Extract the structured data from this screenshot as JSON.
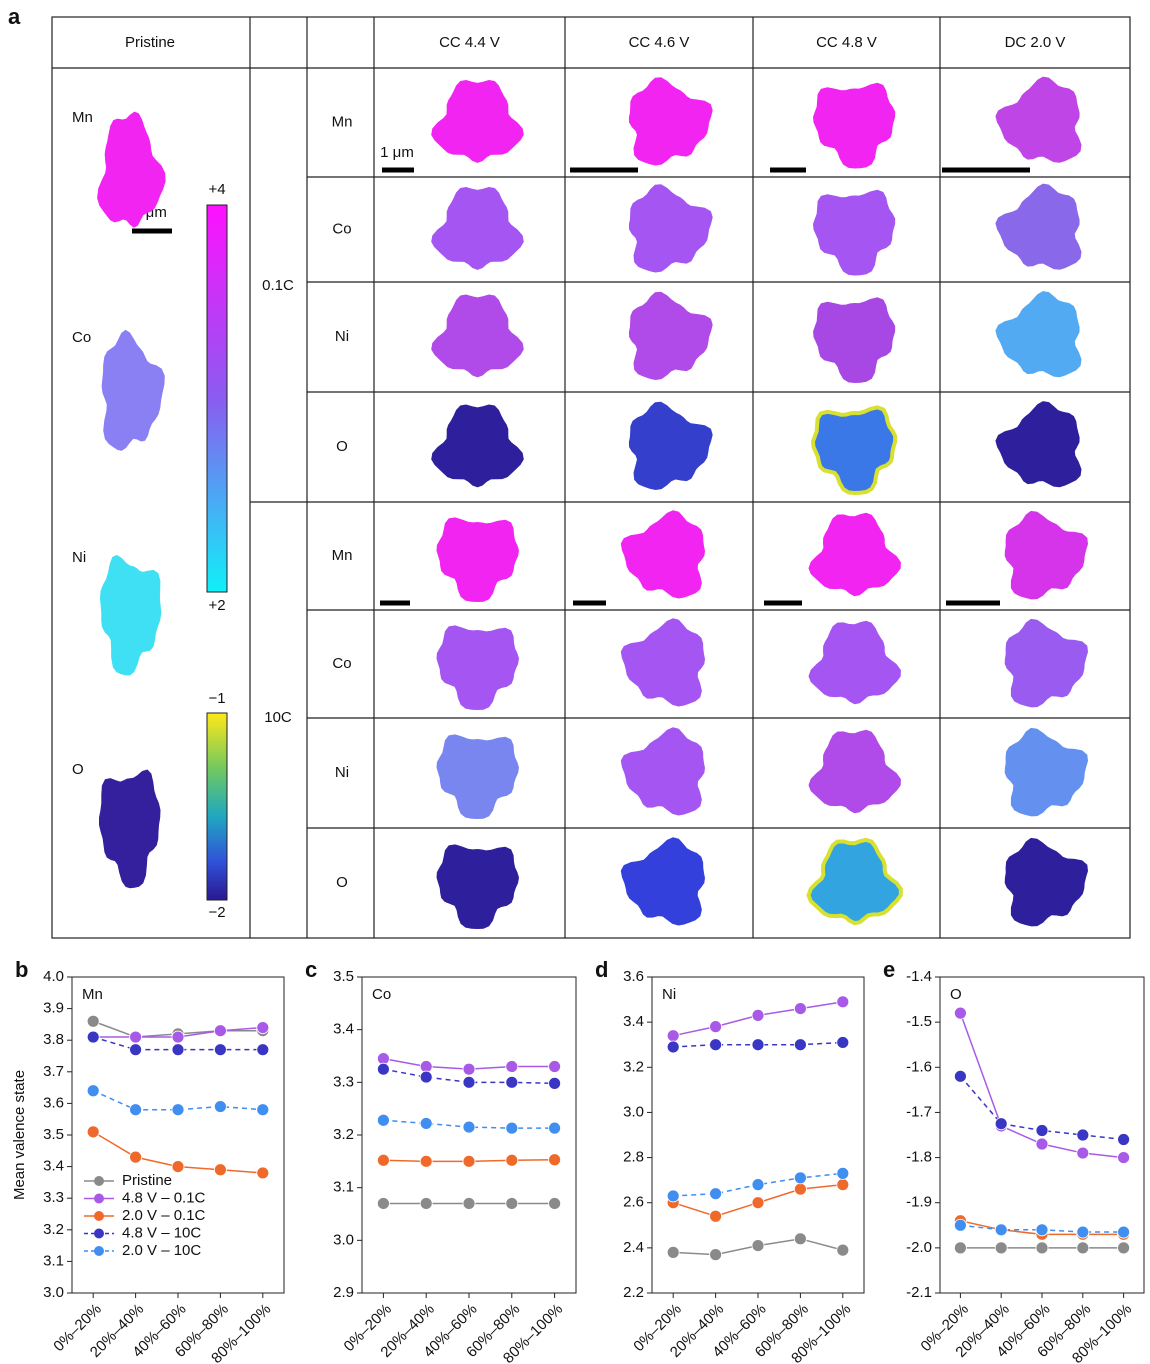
{
  "panel_a": {
    "label": "a",
    "pristine_header": "Pristine",
    "columns": [
      "CC 4.4 V",
      "CC 4.6 V",
      "CC 4.8 V",
      "DC 2.0 V"
    ],
    "rates": [
      "0.1C",
      "10C"
    ],
    "elements": [
      "Mn",
      "Co",
      "Ni",
      "O"
    ],
    "scale_bar": "1 μm",
    "colorbar_metal": {
      "max": "+4",
      "min": "+2"
    },
    "colorbar_oxygen": {
      "max": "−1",
      "min": "−2"
    }
  },
  "chart_data": [
    {
      "type": "line",
      "panel": "b",
      "title": "Mn",
      "ylabel": "Mean valence state",
      "legend": "lower left",
      "categories": [
        "0%–20%",
        "20%–40%",
        "40%–60%",
        "60%–80%",
        "80%–100%"
      ],
      "ylim": [
        3.0,
        4.0
      ],
      "yticks": [
        {
          "value": 3.0,
          "label": "3.0"
        },
        3.1,
        3.2,
        3.3,
        3.4,
        3.5,
        3.6,
        3.7,
        3.8,
        3.9,
        {
          "value": 4.0,
          "label": "4.0"
        }
      ],
      "series": [
        {
          "name": "Pristine",
          "color": "#8a8a8a",
          "dashed": false,
          "values": [
            3.86,
            3.81,
            3.82,
            3.83,
            3.83
          ]
        },
        {
          "name": "4.8 V – 0.1C",
          "color": "#a85ae6",
          "dashed": false,
          "values": [
            3.81,
            3.81,
            3.81,
            3.83,
            3.84
          ]
        },
        {
          "name": "2.0 V – 0.1C",
          "color": "#ef6a2a",
          "dashed": false,
          "values": [
            3.51,
            3.43,
            3.4,
            3.39,
            3.38
          ]
        },
        {
          "name": "4.8 V – 10C",
          "color": "#3a36c4",
          "dashed": true,
          "values": [
            3.81,
            3.77,
            3.77,
            3.77,
            3.77
          ]
        },
        {
          "name": "2.0 V – 10C",
          "color": "#3f8ef0",
          "dashed": true,
          "values": [
            3.64,
            3.58,
            3.58,
            3.59,
            3.58
          ]
        }
      ]
    },
    {
      "type": "line",
      "panel": "c",
      "title": "Co",
      "categories": [
        "0%–20%",
        "20%–40%",
        "40%–60%",
        "60%–80%",
        "80%–100%"
      ],
      "ylim": [
        2.9,
        3.5
      ],
      "yticks": [
        2.9,
        {
          "value": 3.0,
          "label": "3.0"
        },
        3.1,
        3.2,
        3.3,
        3.4,
        3.5
      ],
      "series": [
        {
          "name": "Pristine",
          "color": "#8a8a8a",
          "dashed": false,
          "values": [
            3.07,
            3.07,
            3.07,
            3.07,
            3.07
          ]
        },
        {
          "name": "4.8 V – 0.1C",
          "color": "#a85ae6",
          "dashed": false,
          "values": [
            3.345,
            3.33,
            3.325,
            3.33,
            3.33
          ]
        },
        {
          "name": "2.0 V – 0.1C",
          "color": "#ef6a2a",
          "dashed": false,
          "values": [
            3.152,
            3.15,
            3.15,
            3.152,
            3.153
          ]
        },
        {
          "name": "4.8 V – 10C",
          "color": "#3a36c4",
          "dashed": true,
          "values": [
            3.325,
            3.31,
            3.3,
            3.3,
            3.298
          ]
        },
        {
          "name": "2.0 V – 10C",
          "color": "#3f8ef0",
          "dashed": true,
          "values": [
            3.228,
            3.222,
            3.215,
            3.213,
            3.213
          ]
        }
      ]
    },
    {
      "type": "line",
      "panel": "d",
      "title": "Ni",
      "categories": [
        "0%–20%",
        "20%–40%",
        "40%–60%",
        "60%–80%",
        "80%–100%"
      ],
      "ylim": [
        2.2,
        3.6
      ],
      "yticks": [
        2.2,
        2.4,
        2.6,
        2.8,
        {
          "value": 3.0,
          "label": "3.0"
        },
        3.2,
        3.4,
        3.6
      ],
      "series": [
        {
          "name": "Pristine",
          "color": "#8a8a8a",
          "dashed": false,
          "values": [
            2.38,
            2.37,
            2.41,
            2.44,
            2.39
          ]
        },
        {
          "name": "4.8 V – 0.1C",
          "color": "#a85ae6",
          "dashed": false,
          "values": [
            3.34,
            3.38,
            3.43,
            3.46,
            3.49
          ]
        },
        {
          "name": "2.0 V – 0.1C",
          "color": "#ef6a2a",
          "dashed": false,
          "values": [
            2.6,
            2.54,
            2.6,
            2.66,
            2.68
          ]
        },
        {
          "name": "4.8 V – 10C",
          "color": "#3a36c4",
          "dashed": true,
          "values": [
            3.29,
            3.3,
            3.3,
            3.3,
            3.31
          ]
        },
        {
          "name": "2.0 V – 10C",
          "color": "#3f8ef0",
          "dashed": true,
          "values": [
            2.63,
            2.64,
            2.68,
            2.71,
            2.73
          ]
        }
      ]
    },
    {
      "type": "line",
      "panel": "e",
      "title": "O",
      "categories": [
        "0%–20%",
        "20%–40%",
        "40%–60%",
        "60%–80%",
        "80%–100%"
      ],
      "ylim": [
        -2.1,
        -1.4
      ],
      "yticks": [
        -2.1,
        {
          "value": -2.0,
          "label": "-2.0"
        },
        -1.9,
        -1.8,
        -1.7,
        -1.6,
        -1.5,
        -1.4
      ],
      "series": [
        {
          "name": "Pristine",
          "color": "#8a8a8a",
          "dashed": false,
          "values": [
            -2.0,
            -2.0,
            -2.0,
            -2.0,
            -2.0
          ]
        },
        {
          "name": "4.8 V – 0.1C",
          "color": "#a85ae6",
          "dashed": false,
          "values": [
            -1.48,
            -1.73,
            -1.77,
            -1.79,
            -1.8
          ]
        },
        {
          "name": "2.0 V – 0.1C",
          "color": "#ef6a2a",
          "dashed": false,
          "values": [
            -1.94,
            -1.96,
            -1.97,
            -1.97,
            -1.97
          ]
        },
        {
          "name": "4.8 V – 10C",
          "color": "#3a36c4",
          "dashed": true,
          "values": [
            -1.62,
            -1.725,
            -1.74,
            -1.75,
            -1.76
          ]
        },
        {
          "name": "2.0 V – 10C",
          "color": "#3f8ef0",
          "dashed": true,
          "values": [
            -1.95,
            -1.96,
            -1.96,
            -1.965,
            -1.965
          ]
        }
      ]
    }
  ]
}
